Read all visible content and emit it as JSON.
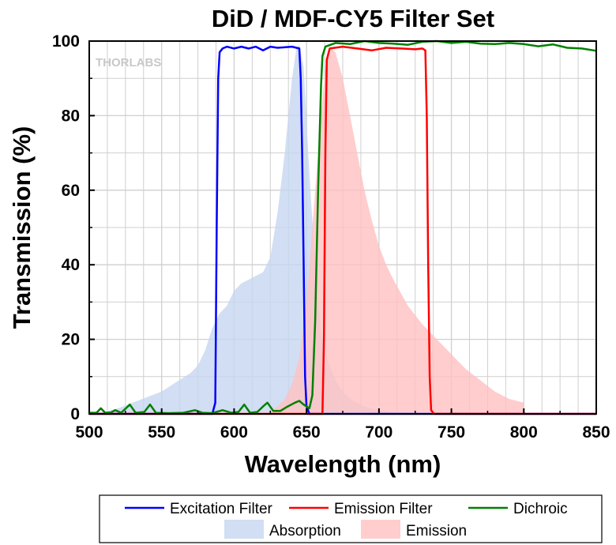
{
  "chart_data": {
    "type": "line",
    "title": "DiD / MDF-CY5 Filter Set",
    "xlabel": "Wavelength (nm)",
    "ylabel": "Transmission (%)",
    "xlim": [
      500,
      850
    ],
    "ylim": [
      0,
      100
    ],
    "xticks": [
      500,
      550,
      600,
      650,
      700,
      750,
      800,
      850
    ],
    "yticks": [
      0,
      20,
      40,
      60,
      80,
      100
    ],
    "grid": true,
    "legend_position": "bottom",
    "watermark": "THORLABS",
    "series": [
      {
        "name": "Absorption",
        "kind": "area",
        "color": "#c6d6f0",
        "points": [
          [
            500,
            0
          ],
          [
            510,
            0.5
          ],
          [
            520,
            1.5
          ],
          [
            530,
            3
          ],
          [
            540,
            4.5
          ],
          [
            550,
            6
          ],
          [
            560,
            8.5
          ],
          [
            570,
            11
          ],
          [
            575,
            13
          ],
          [
            580,
            17
          ],
          [
            585,
            23
          ],
          [
            590,
            27
          ],
          [
            595,
            29
          ],
          [
            600,
            33
          ],
          [
            605,
            35
          ],
          [
            610,
            36
          ],
          [
            615,
            37
          ],
          [
            620,
            38
          ],
          [
            625,
            42
          ],
          [
            630,
            54
          ],
          [
            635,
            70
          ],
          [
            640,
            90
          ],
          [
            643,
            98
          ],
          [
            645,
            99
          ],
          [
            648,
            93
          ],
          [
            650,
            78
          ],
          [
            653,
            58
          ],
          [
            657,
            35
          ],
          [
            660,
            22
          ],
          [
            665,
            14
          ],
          [
            670,
            9
          ],
          [
            675,
            6
          ],
          [
            680,
            4
          ],
          [
            690,
            2
          ],
          [
            700,
            1
          ],
          [
            710,
            0.5
          ],
          [
            730,
            0
          ]
        ]
      },
      {
        "name": "Emission",
        "kind": "area",
        "color": "#ffc0c0",
        "points": [
          [
            620,
            0
          ],
          [
            625,
            0.5
          ],
          [
            630,
            2
          ],
          [
            635,
            4
          ],
          [
            640,
            8
          ],
          [
            645,
            15
          ],
          [
            650,
            30
          ],
          [
            655,
            55
          ],
          [
            660,
            80
          ],
          [
            663,
            93
          ],
          [
            667,
            98
          ],
          [
            670,
            97
          ],
          [
            675,
            90
          ],
          [
            680,
            80
          ],
          [
            685,
            70
          ],
          [
            690,
            60
          ],
          [
            695,
            52
          ],
          [
            700,
            45
          ],
          [
            705,
            40
          ],
          [
            710,
            36
          ],
          [
            720,
            29
          ],
          [
            730,
            24
          ],
          [
            740,
            20
          ],
          [
            750,
            16
          ],
          [
            760,
            12
          ],
          [
            770,
            9
          ],
          [
            780,
            6
          ],
          [
            790,
            4
          ],
          [
            800,
            3
          ],
          [
            800,
            0
          ]
        ]
      },
      {
        "name": "Excitation Filter",
        "kind": "line",
        "color": "#0000ff",
        "points": [
          [
            500,
            0
          ],
          [
            585,
            0
          ],
          [
            587,
            3
          ],
          [
            588,
            50
          ],
          [
            589,
            90
          ],
          [
            590,
            97
          ],
          [
            592,
            98
          ],
          [
            595,
            98.5
          ],
          [
            600,
            98
          ],
          [
            605,
            98.5
          ],
          [
            610,
            98
          ],
          [
            615,
            98.5
          ],
          [
            620,
            97.5
          ],
          [
            625,
            98.5
          ],
          [
            630,
            98.2
          ],
          [
            640,
            98.5
          ],
          [
            645,
            98
          ],
          [
            646,
            90
          ],
          [
            647,
            70
          ],
          [
            648,
            40
          ],
          [
            649,
            10
          ],
          [
            650,
            2
          ],
          [
            652,
            0
          ],
          [
            850,
            0
          ]
        ]
      },
      {
        "name": "Emission Filter",
        "kind": "line",
        "color": "#ff0000",
        "points": [
          [
            500,
            0
          ],
          [
            661,
            0
          ],
          [
            662,
            20
          ],
          [
            663,
            70
          ],
          [
            664,
            95
          ],
          [
            666,
            98
          ],
          [
            675,
            98.5
          ],
          [
            685,
            98
          ],
          [
            695,
            97.5
          ],
          [
            705,
            98.2
          ],
          [
            715,
            98
          ],
          [
            725,
            97.8
          ],
          [
            730,
            98
          ],
          [
            732,
            97.5
          ],
          [
            733,
            80
          ],
          [
            734,
            40
          ],
          [
            735,
            10
          ],
          [
            736,
            1
          ],
          [
            738,
            0
          ],
          [
            850,
            0
          ]
        ]
      },
      {
        "name": "Dichroic",
        "kind": "line",
        "color": "#008000",
        "points": [
          [
            500,
            0.3
          ],
          [
            505,
            0.3
          ],
          [
            508,
            1.5
          ],
          [
            511,
            0.3
          ],
          [
            515,
            0.4
          ],
          [
            518,
            1
          ],
          [
            522,
            0.3
          ],
          [
            528,
            2.5
          ],
          [
            532,
            0.3
          ],
          [
            538,
            0.5
          ],
          [
            542,
            2.5
          ],
          [
            546,
            0.3
          ],
          [
            555,
            0.2
          ],
          [
            565,
            0.3
          ],
          [
            573,
            1
          ],
          [
            578,
            0.3
          ],
          [
            585,
            0.2
          ],
          [
            592,
            1
          ],
          [
            598,
            0.3
          ],
          [
            603,
            0.5
          ],
          [
            607,
            2.5
          ],
          [
            611,
            0.3
          ],
          [
            616,
            0.5
          ],
          [
            620,
            2
          ],
          [
            623,
            3
          ],
          [
            627,
            0.8
          ],
          [
            632,
            0.8
          ],
          [
            637,
            2
          ],
          [
            642,
            3
          ],
          [
            645,
            3.5
          ],
          [
            648,
            2.5
          ],
          [
            650,
            2
          ],
          [
            652,
            1.5
          ],
          [
            654,
            5
          ],
          [
            656,
            25
          ],
          [
            658,
            60
          ],
          [
            660,
            88
          ],
          [
            661,
            96
          ],
          [
            663,
            98.5
          ],
          [
            670,
            99.5
          ],
          [
            680,
            99.2
          ],
          [
            690,
            100
          ],
          [
            700,
            99.5
          ],
          [
            710,
            99.3
          ],
          [
            720,
            99
          ],
          [
            730,
            99.8
          ],
          [
            740,
            100
          ],
          [
            750,
            99.5
          ],
          [
            760,
            99.8
          ],
          [
            770,
            99.3
          ],
          [
            780,
            99.2
          ],
          [
            790,
            99.5
          ],
          [
            800,
            99.2
          ],
          [
            810,
            98.6
          ],
          [
            820,
            99.1
          ],
          [
            830,
            98.2
          ],
          [
            840,
            98
          ],
          [
            850,
            97.4
          ]
        ]
      }
    ]
  }
}
